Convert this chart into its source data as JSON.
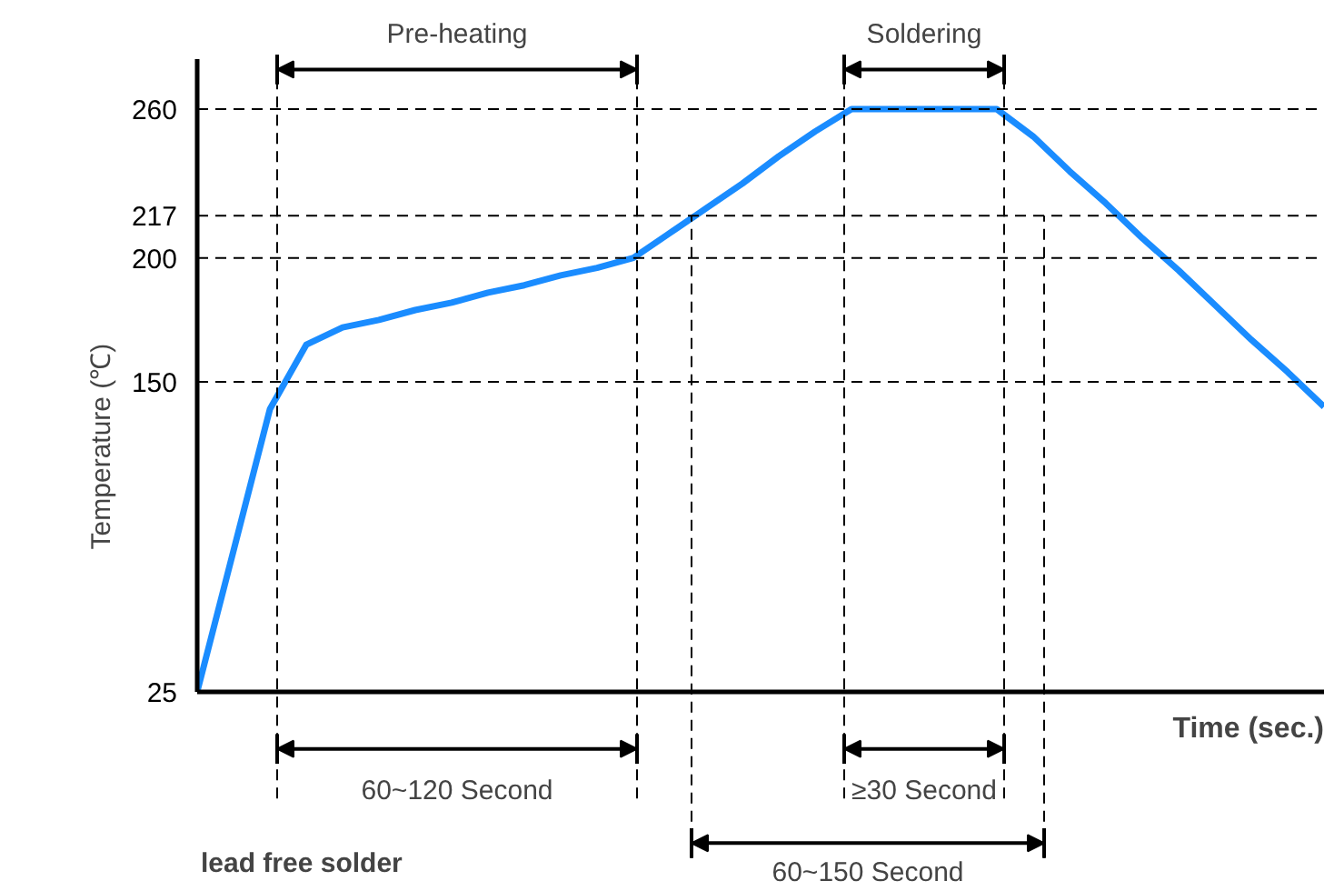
{
  "chart_data": {
    "type": "line",
    "xlabel": "Time (sec.)",
    "ylabel": "Temperature (℃)",
    "categories": [
      null,
      null,
      null,
      null,
      null,
      null,
      null,
      null,
      null,
      null,
      null,
      null,
      null,
      null,
      null,
      null,
      null,
      null,
      null,
      null,
      null,
      null,
      null,
      null,
      null,
      null,
      null,
      null,
      null,
      null,
      null,
      null
    ],
    "series": [
      {
        "color": "#1a8cff",
        "values": [
          25,
          82,
          139,
          165,
          172,
          175,
          179,
          182,
          186,
          189,
          193,
          196,
          200,
          210,
          220,
          230,
          241,
          251,
          260,
          260,
          260,
          260,
          260,
          249,
          235,
          222,
          208,
          195,
          181,
          167,
          154,
          140
        ]
      }
    ],
    "ylim": [
      25,
      280
    ],
    "yticks": [
      25,
      150,
      200,
      217,
      260
    ],
    "tick_labels": "y",
    "grid": false,
    "marker": "none",
    "line_style": "solid",
    "ref_lines": [
      {
        "axis": "y",
        "value": 150,
        "label": null,
        "line_style": "dashed"
      },
      {
        "axis": "y",
        "value": 200,
        "label": null,
        "line_style": "dashed"
      },
      {
        "axis": "y",
        "value": 217,
        "label": null,
        "line_style": "dashed"
      },
      {
        "axis": "y",
        "value": 260,
        "label": null,
        "line_style": "dashed"
      }
    ],
    "annotations": [
      "Pre-heating",
      "Soldering",
      "60~120 Second",
      "≥30 Second",
      "60~150 Second",
      "lead free solder"
    ]
  }
}
